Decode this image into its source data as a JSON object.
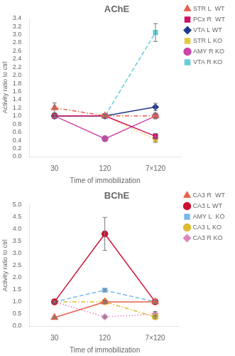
{
  "chart_data": [
    {
      "type": "line",
      "title": "AChE",
      "xlabel": "Time of immobilization",
      "ylabel": "Activity ratio to ctrl",
      "categories": [
        "30",
        "120",
        "7×120"
      ],
      "ylim": [
        0.0,
        3.4
      ],
      "yticks": [
        {
          "value": 0.0,
          "label": "0.0"
        },
        0.2,
        0.4,
        0.6,
        0.8,
        {
          "value": 1.0,
          "label": "1.0"
        },
        1.2,
        1.4,
        1.6,
        1.8,
        {
          "value": 2.0,
          "label": "2.0"
        },
        2.2,
        2.4,
        2.6,
        2.8,
        {
          "value": 3.0,
          "label": "3.0"
        },
        3.2,
        3.4
      ],
      "grid": false,
      "legend": "upper right",
      "series": [
        {
          "name": "STR L  WT",
          "color": "#E8604C",
          "marker": "triangle",
          "line_style": "dashdot",
          "values": [
            1.2,
            1.0,
            1.0
          ],
          "yerr": [
            0.12,
            0.04,
            0.07
          ]
        },
        {
          "name": "PCx R  WT",
          "color": "#CC1166",
          "marker": "square",
          "line_style": "solid",
          "values": [
            1.0,
            1.0,
            0.5
          ],
          "yerr": [
            0.04,
            0.04,
            0.07
          ]
        },
        {
          "name": "VTA L WT",
          "color": "#1F3A8F",
          "marker": "diamond",
          "line_style": "solid",
          "values": [
            1.0,
            1.0,
            1.22
          ],
          "yerr": [
            0.04,
            0.04,
            0.09
          ]
        },
        {
          "name": "STR L KO",
          "color": "#E8C840",
          "marker": "square",
          "line_style": "dotted",
          "values": [
            1.0,
            1.0,
            0.42
          ],
          "yerr": [
            0.04,
            0.04,
            0.07
          ]
        },
        {
          "name": "AMY R KO",
          "color": "#CC44AA",
          "marker": "circle",
          "line_style": "solid",
          "values": [
            1.0,
            0.44,
            1.0
          ],
          "yerr": [
            0.04,
            0.05,
            0.04
          ]
        },
        {
          "name": "VTA R KO",
          "color": "#66CCDD",
          "marker": "square",
          "line_style": "dashed",
          "values": [
            1.0,
            1.0,
            3.05
          ],
          "yerr": [
            0.04,
            0.04,
            0.22
          ]
        }
      ]
    },
    {
      "type": "line",
      "title": "BChE",
      "xlabel": "Time of immobilization",
      "ylabel": "Activity ratio to ctrl",
      "categories": [
        "30",
        "120",
        "7×120"
      ],
      "ylim": [
        0.0,
        5.0
      ],
      "yticks": [
        {
          "value": 0.0,
          "label": "0.0"
        },
        0.5,
        {
          "value": 1.0,
          "label": "1.0"
        },
        1.5,
        {
          "value": 2.0,
          "label": "2.0"
        },
        2.5,
        {
          "value": 3.0,
          "label": "3.0"
        },
        3.5,
        {
          "value": 4.0,
          "label": "4.0"
        },
        4.5,
        {
          "value": 5.0,
          "label": "5.0"
        }
      ],
      "grid": false,
      "legend": "upper right",
      "series": [
        {
          "name": "CA3 R  WT",
          "color": "#E8604C",
          "marker": "triangle",
          "line_style": "solid",
          "values": [
            0.35,
            1.0,
            1.0
          ],
          "yerr": [
            0.04,
            0.04,
            0.06
          ]
        },
        {
          "name": "CA3 L WT",
          "color": "#CC1133",
          "marker": "circle",
          "line_style": "solid",
          "values": [
            1.0,
            3.8,
            1.0
          ],
          "yerr": [
            0.04,
            0.68,
            0.06
          ]
        },
        {
          "name": "AMY L  KO",
          "color": "#77BBEE",
          "marker": "square",
          "line_style": "dashed",
          "values": [
            1.0,
            1.48,
            1.0
          ],
          "yerr": [
            0.04,
            0.04,
            0.06
          ]
        },
        {
          "name": "CA3 L KO",
          "color": "#DDBB33",
          "marker": "circle",
          "line_style": "dashdot",
          "values": [
            1.0,
            1.0,
            0.38
          ],
          "yerr": [
            0.04,
            0.06,
            0.06
          ]
        },
        {
          "name": "CA3 R KO",
          "color": "#DD88BB",
          "marker": "diamond",
          "line_style": "dotted",
          "values": [
            1.0,
            0.38,
            0.5
          ],
          "yerr": [
            0.04,
            0.04,
            0.1
          ]
        }
      ]
    }
  ]
}
